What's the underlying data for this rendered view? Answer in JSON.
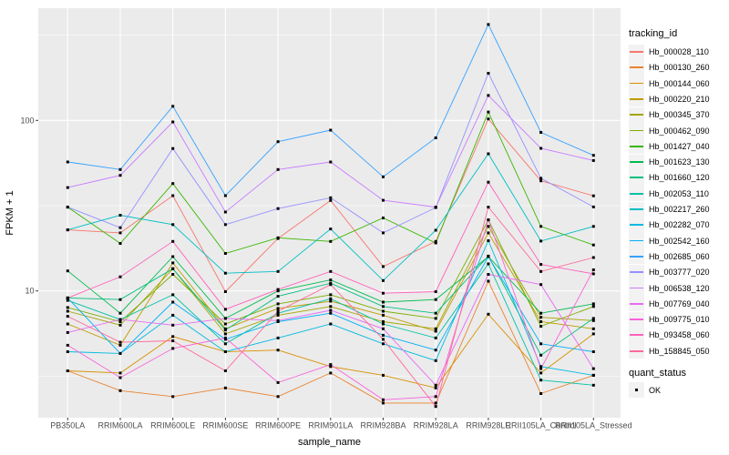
{
  "chart_data": {
    "type": "line",
    "title": "",
    "xlabel": "sample_name",
    "ylabel": "FPKM + 1",
    "x_categories": [
      "PB350LA",
      "RRIM600LA",
      "RRIM600LE",
      "RRIM600SE",
      "RRIM600PE",
      "RRIM901LA",
      "RRIM928BA",
      "RRIM928LA",
      "RRIM928LE",
      "RRII105LA_Control",
      "RRII105LA_Stressed"
    ],
    "y_axis": {
      "scale": "log10",
      "ticks": [
        {
          "label": "100",
          "value": 100
        },
        {
          "label": "10",
          "value": 10
        }
      ],
      "minor_breaks": [
        3.1623,
        31.623,
        316.23
      ],
      "range": [
        1.8,
        478
      ]
    },
    "grid": "on",
    "panel_bg": "#EBEBEB",
    "grid_color": "#FFFFFF",
    "marker": "black-square",
    "legend": {
      "position": "right",
      "tracking_title": "tracking_id",
      "quant_title": "quant_status",
      "quant_items": [
        {
          "label": "OK",
          "marker": "black-square"
        }
      ]
    },
    "series": [
      {
        "name": "Hb_000028_110",
        "color": "#F8766D",
        "values": [
          22.8,
          21.9,
          36.2,
          9.9,
          20.3,
          33.9,
          13.9,
          19.5,
          102,
          44.2,
          36.1
        ]
      },
      {
        "name": "Hb_000130_260",
        "color": "#EA8331",
        "values": [
          3.4,
          2.6,
          2.4,
          2.7,
          2.4,
          3.3,
          2.2,
          2.2,
          11.4,
          2.5,
          3.2
        ]
      },
      {
        "name": "Hb_000144_060",
        "color": "#D89000",
        "values": [
          3.4,
          3.3,
          5.4,
          4.4,
          4.5,
          3.6,
          3.2,
          2.7,
          7.3,
          3.3,
          5.6
        ]
      },
      {
        "name": "Hb_000220_210",
        "color": "#C09B00",
        "values": [
          6.4,
          4.8,
          14.6,
          6.0,
          7.9,
          8.7,
          7.2,
          5.8,
          21.9,
          6.6,
          6.0
        ]
      },
      {
        "name": "Hb_000345_370",
        "color": "#A3A500",
        "values": [
          7.6,
          6.3,
          13.5,
          5.6,
          7.2,
          8.1,
          6.6,
          6.0,
          23.9,
          7.0,
          6.7
        ]
      },
      {
        "name": "Hb_000462_090",
        "color": "#7CAE00",
        "values": [
          8.0,
          6.6,
          12.5,
          6.4,
          8.4,
          9.5,
          7.6,
          6.9,
          26.1,
          6.2,
          8.1
        ]
      },
      {
        "name": "Hb_001427_040",
        "color": "#39B600",
        "values": [
          31.0,
          19.0,
          42.6,
          16.6,
          20.5,
          19.5,
          26.8,
          19.1,
          112,
          23.9,
          18.6
        ]
      },
      {
        "name": "Hb_001623_130",
        "color": "#00BB4E",
        "values": [
          13.1,
          7.4,
          15.9,
          6.9,
          10.0,
          11.6,
          8.6,
          8.9,
          15.9,
          7.4,
          8.4
        ]
      },
      {
        "name": "Hb_001660_120",
        "color": "#00BF7D",
        "values": [
          9.1,
          8.9,
          13.5,
          5.9,
          9.3,
          11.1,
          8.1,
          7.4,
          16.0,
          4.2,
          6.9
        ]
      },
      {
        "name": "Hb_002053_110",
        "color": "#00C1A3",
        "values": [
          8.8,
          6.8,
          9.5,
          4.9,
          7.4,
          9.0,
          6.4,
          5.3,
          14.4,
          3.0,
          2.8
        ]
      },
      {
        "name": "Hb_002217_260",
        "color": "#00BFC4",
        "values": [
          22.8,
          27.8,
          24.5,
          12.7,
          13.0,
          23.1,
          11.5,
          22.7,
          63.7,
          19.6,
          23.9
        ]
      },
      {
        "name": "Hb_002282_070",
        "color": "#00BAE0",
        "values": [
          4.4,
          4.3,
          7.2,
          4.4,
          5.3,
          6.4,
          4.9,
          3.9,
          19.7,
          3.6,
          3.2
        ]
      },
      {
        "name": "Hb_002542_160",
        "color": "#00B0F6",
        "values": [
          9.1,
          4.3,
          8.6,
          5.2,
          6.6,
          7.4,
          5.5,
          4.5,
          15.9,
          4.9,
          4.4
        ]
      },
      {
        "name": "Hb_002685_060",
        "color": "#35A2FF",
        "values": [
          57,
          51.5,
          121,
          36.2,
          75,
          87.7,
          46.7,
          79,
          365,
          85,
          62.4
        ]
      },
      {
        "name": "Hb_003777_020",
        "color": "#9590FF",
        "values": [
          31.0,
          23.5,
          68.4,
          24.5,
          30.4,
          35.2,
          21.9,
          30.8,
          189,
          45.8,
          31.1
        ]
      },
      {
        "name": "Hb_006538_120",
        "color": "#C77CFF",
        "values": [
          40.4,
          47.6,
          97.9,
          29.0,
          51.5,
          57.0,
          34.0,
          31.0,
          140,
          68.6,
          58.2
        ]
      },
      {
        "name": "Hb_007769_040",
        "color": "#E76BF3",
        "values": [
          5.7,
          6.8,
          6.3,
          6.9,
          6.7,
          7.7,
          6.0,
          2.8,
          12.5,
          10.9,
          3.5
        ]
      },
      {
        "name": "Hb_009775_010",
        "color": "#FA62DB",
        "values": [
          4.8,
          3.1,
          4.6,
          5.3,
          2.9,
          3.7,
          2.3,
          2.4,
          26.1,
          3.5,
          13.3
        ]
      },
      {
        "name": "Hb_093458_060",
        "color": "#FF62BC",
        "values": [
          9.1,
          12.1,
          19.5,
          7.8,
          10.2,
          13.0,
          9.7,
          9.9,
          43.4,
          14.3,
          12.6
        ]
      },
      {
        "name": "Hb_158845_050",
        "color": "#FF6A98",
        "values": [
          7.1,
          5.0,
          5.1,
          3.4,
          7.6,
          10.9,
          5.2,
          2.1,
          31.0,
          13.0,
          15.7
        ]
      }
    ]
  }
}
